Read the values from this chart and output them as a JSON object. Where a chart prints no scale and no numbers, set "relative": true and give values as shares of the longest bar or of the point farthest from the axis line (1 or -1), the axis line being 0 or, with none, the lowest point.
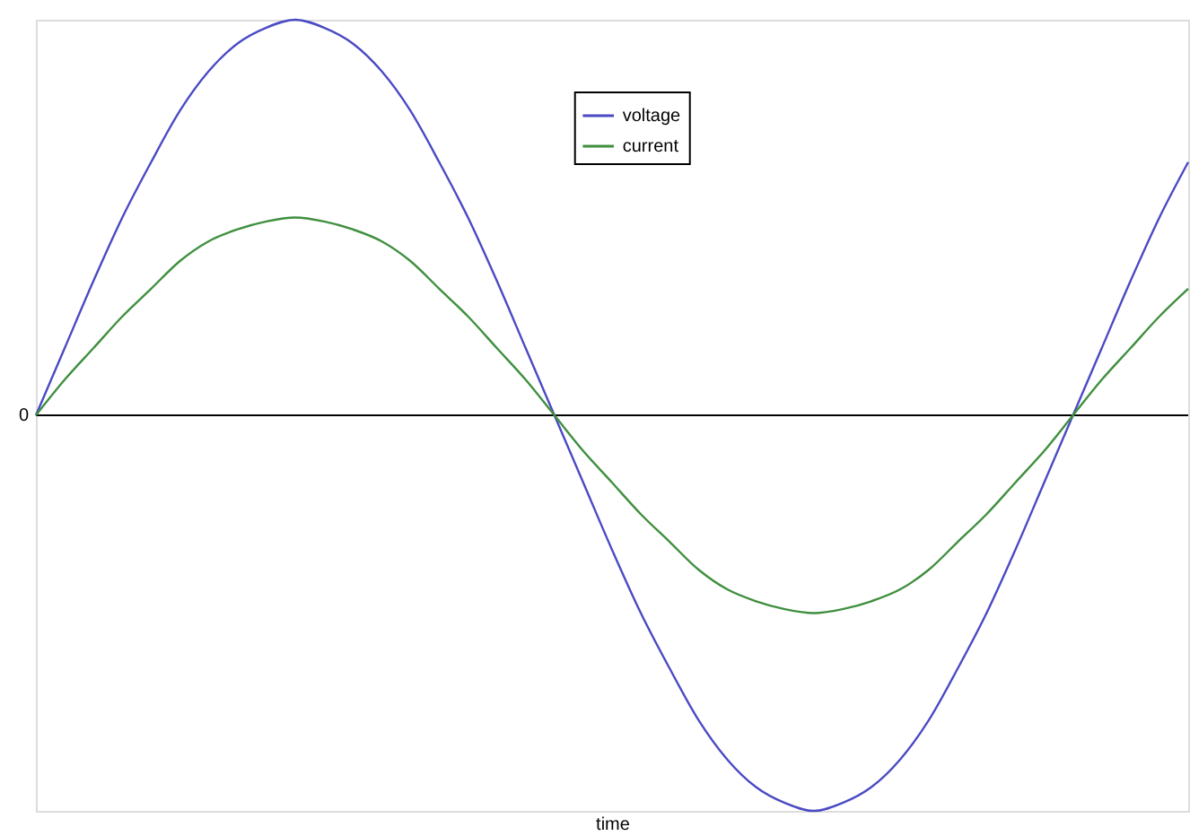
{
  "chart_data": {
    "type": "line",
    "relative": true,
    "xlabel": "time",
    "legend": "top",
    "grid": false,
    "marker": "none",
    "line_style": "solid",
    "annotations": [
      "0"
    ],
    "categories": [
      null,
      null,
      null,
      null,
      null,
      null,
      null,
      null,
      null,
      null,
      null,
      null,
      null,
      null,
      null,
      null,
      null,
      null,
      null,
      null,
      null,
      null,
      null,
      null,
      null,
      null,
      null,
      null,
      null,
      null,
      null,
      null,
      null,
      null,
      null,
      null,
      null,
      null,
      null,
      null,
      null
    ],
    "series": [
      {
        "name": "voltage",
        "color": "#4a4ac4",
        "values": [
          0,
          0.17,
          0.34,
          0.5,
          0.64,
          0.77,
          0.87,
          0.94,
          0.98,
          1,
          0.98,
          0.94,
          0.87,
          0.77,
          0.64,
          0.5,
          0.34,
          0.17,
          0,
          -0.17,
          -0.34,
          -0.5,
          -0.64,
          -0.77,
          -0.87,
          -0.94,
          -0.98,
          -1,
          -0.98,
          -0.94,
          -0.87,
          -0.77,
          -0.64,
          -0.5,
          -0.34,
          -0.17,
          0,
          0.17,
          0.34,
          0.5,
          0.64
        ]
      },
      {
        "name": "current",
        "color": "#3f8f3f",
        "values": [
          0,
          0.09,
          0.17,
          0.25,
          0.32,
          0.39,
          0.44,
          0.47,
          0.49,
          0.5,
          0.49,
          0.47,
          0.44,
          0.39,
          0.32,
          0.25,
          0.17,
          0.09,
          0,
          -0.09,
          -0.17,
          -0.25,
          -0.32,
          -0.39,
          -0.44,
          -0.47,
          -0.49,
          -0.5,
          -0.49,
          -0.47,
          -0.44,
          -0.39,
          -0.32,
          -0.25,
          -0.17,
          -0.09,
          0,
          0.09,
          0.17,
          0.25,
          0.32
        ]
      }
    ]
  }
}
